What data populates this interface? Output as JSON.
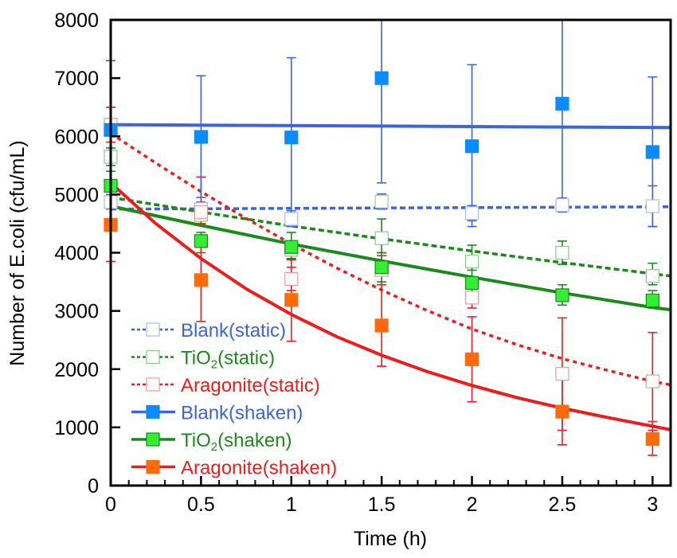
{
  "chart_data": {
    "type": "scatter",
    "title": "",
    "xlabel": "Time (h)",
    "ylabel": "Number of E.coli (cfu/mL)",
    "xlim": [
      0,
      3.1
    ],
    "ylim": [
      0,
      8000
    ],
    "xticks": [
      0,
      0.5,
      1,
      1.5,
      2,
      2.5,
      3
    ],
    "xtick_labels": [
      "0",
      "0.5",
      "1",
      "1.5",
      "2",
      "2.5",
      "3"
    ],
    "yticks": [
      0,
      1000,
      2000,
      3000,
      4000,
      5000,
      6000,
      7000,
      8000
    ],
    "ytick_labels": [
      "0",
      "1000",
      "2000",
      "3000",
      "4000",
      "5000",
      "6000",
      "7000",
      "8000"
    ],
    "grid": false,
    "legend_position": "bottom-left",
    "x": [
      0,
      0.5,
      1,
      1.5,
      2,
      2.5,
      3
    ],
    "series": [
      {
        "name": "Blank(static)",
        "legend_label": "Blank(static)",
        "color": "#3b64e0",
        "marker_fill": "#ffffff",
        "marker_stroke": "#a9b8f0",
        "fit_style": "dashed",
        "values": [
          4870,
          4750,
          4580,
          4880,
          4680,
          4820,
          4800
        ],
        "err_low": [
          4750,
          4650,
          4450,
          4750,
          4550,
          4700,
          4450
        ],
        "err_high": [
          5000,
          4870,
          4720,
          5010,
          4810,
          4940,
          5150
        ],
        "fit": {
          "t": [
            0,
            0.5,
            1,
            1.5,
            2,
            2.5,
            3,
            3.1
          ],
          "v": [
            4750,
            4755,
            4762,
            4770,
            4775,
            4782,
            4788,
            4790
          ]
        }
      },
      {
        "name": "TiO2(static)",
        "legend_label": "TiO2(static)",
        "color": "#1a8a1a",
        "marker_fill": "#ffffff",
        "marker_stroke": "#8cc48c",
        "fit_style": "dashed",
        "values": [
          5650,
          4650,
          4050,
          4250,
          3850,
          4000,
          3600
        ],
        "err_low": [
          5500,
          4500,
          3900,
          4000,
          3700,
          3800,
          3450
        ],
        "err_high": [
          5800,
          4800,
          4200,
          4580,
          4130,
          4200,
          3820
        ],
        "fit": {
          "t": [
            0,
            0.5,
            1,
            1.5,
            2,
            2.5,
            3,
            3.1
          ],
          "v": [
            4950,
            4700,
            4460,
            4240,
            4030,
            3830,
            3640,
            3600
          ]
        }
      },
      {
        "name": "Aragonite(static)",
        "legend_label": "Aragonite(static)",
        "color": "#ee1c1c",
        "marker_fill": "#ffffff",
        "marker_stroke": "#f19a9a",
        "fit_style": "dotted",
        "values": [
          6200,
          4700,
          3550,
          3700,
          3230,
          1920,
          1790
        ],
        "err_low": [
          5900,
          4500,
          3350,
          3450,
          3050,
          950,
          950
        ],
        "err_high": [
          6500,
          5300,
          3750,
          3950,
          3420,
          2880,
          2630
        ],
        "fit": {
          "t": [
            0,
            0.25,
            0.5,
            0.75,
            1,
            1.25,
            1.5,
            1.75,
            2,
            2.25,
            2.5,
            2.75,
            3,
            3.1
          ],
          "v": [
            6050,
            5540,
            5050,
            4590,
            4150,
            3740,
            3360,
            3010,
            2690,
            2420,
            2180,
            1980,
            1790,
            1730
          ]
        }
      },
      {
        "name": "Blank(shaken)",
        "legend_label": "Blank(shaken)",
        "color": "#3b64e0",
        "marker_fill": "#0a8cff",
        "marker_stroke": "#0a8cff",
        "fit_style": "solid",
        "values": [
          6110,
          5990,
          5980,
          7000,
          5830,
          6560,
          5730
        ],
        "err_low": [
          4900,
          4950,
          4600,
          5200,
          4450,
          4900,
          4450
        ],
        "err_high": [
          7300,
          7040,
          7350,
          8000,
          7230,
          8000,
          7020
        ],
        "fit": {
          "t": [
            0,
            3.1
          ],
          "v": [
            6200,
            6150
          ]
        }
      },
      {
        "name": "TiO2(shaken)",
        "legend_label": "TiO2(shaken)",
        "color": "#1a8a1a",
        "marker_fill": "#33ee33",
        "marker_stroke": "#1a8a1a",
        "fit_style": "solid",
        "values": [
          5150,
          4200,
          4100,
          3750,
          3480,
          3270,
          3180
        ],
        "err_low": [
          4900,
          4000,
          3900,
          3500,
          3200,
          3100,
          3050
        ],
        "err_high": [
          5400,
          4350,
          4350,
          4000,
          3760,
          3450,
          3350
        ],
        "fit": {
          "t": [
            0,
            0.5,
            1,
            1.5,
            2,
            2.5,
            3,
            3.1
          ],
          "v": [
            4800,
            4470,
            4150,
            3860,
            3580,
            3310,
            3060,
            3020
          ]
        }
      },
      {
        "name": "Aragonite(shaken)",
        "legend_label": "Aragonite(shaken)",
        "color": "#ee1c1c",
        "marker_fill": "#ff6a0a",
        "marker_stroke": "#ff6a0a",
        "fit_style": "solid",
        "values": [
          4480,
          3530,
          3190,
          2750,
          2170,
          1270,
          800
        ],
        "err_low": [
          3850,
          2820,
          2480,
          2050,
          1440,
          700,
          520
        ],
        "err_high": [
          5100,
          4220,
          3880,
          3450,
          2900,
          1850,
          1100
        ],
        "fit": {
          "t": [
            0,
            0.25,
            0.5,
            0.75,
            1,
            1.25,
            1.5,
            1.75,
            2,
            2.25,
            2.5,
            2.75,
            3,
            3.1
          ],
          "v": [
            5200,
            4500,
            3900,
            3380,
            2940,
            2560,
            2240,
            1960,
            1720,
            1510,
            1330,
            1170,
            1020,
            960
          ]
        }
      }
    ]
  }
}
